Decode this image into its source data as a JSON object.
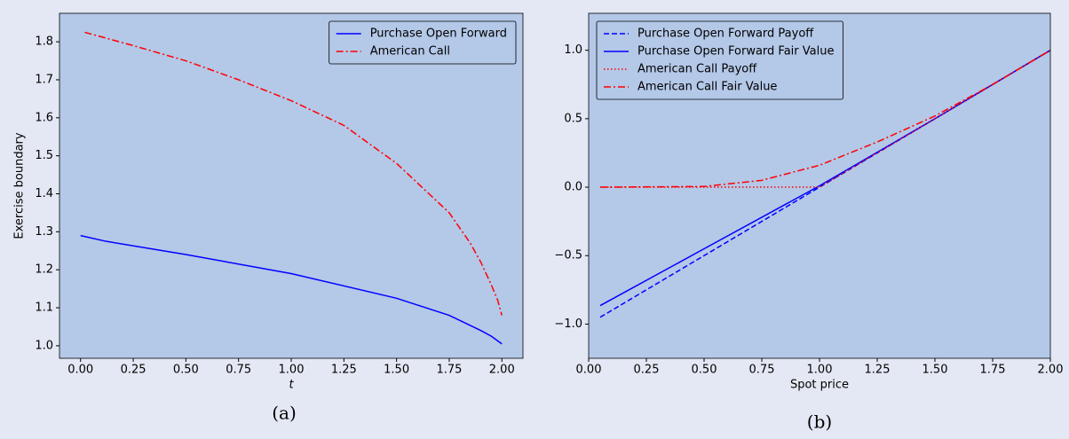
{
  "chart_data": [
    {
      "type": "line",
      "xlabel": "t",
      "ylabel": "Exercise boundary",
      "caption": "(a)",
      "legend": "upper right",
      "xlim": [
        -0.1,
        2.1
      ],
      "ylim": [
        0.967,
        1.875
      ],
      "xticks": [
        {
          "value": 0,
          "label": "0.00"
        },
        {
          "value": 0.25,
          "label": "0.25"
        },
        {
          "value": 0.5,
          "label": "0.50"
        },
        {
          "value": 0.75,
          "label": "0.75"
        },
        {
          "value": 1,
          "label": "1.00"
        },
        {
          "value": 1.25,
          "label": "1.25"
        },
        {
          "value": 1.5,
          "label": "1.50"
        },
        {
          "value": 1.75,
          "label": "1.75"
        },
        {
          "value": 2,
          "label": "2.00"
        }
      ],
      "yticks": [
        {
          "value": 1,
          "label": "1.0"
        },
        1.1,
        1.2,
        1.3,
        1.4,
        1.5,
        1.6,
        1.7,
        1.8
      ],
      "series": [
        {
          "name": "Purchase Open Forward",
          "color": "#0000ff",
          "linestyle": "solid",
          "x": [
            0,
            0.12,
            0.5,
            1.0,
            1.5,
            1.75,
            1.9,
            1.95,
            2.0
          ],
          "values": [
            1.29,
            1.275,
            1.24,
            1.19,
            1.125,
            1.08,
            1.04,
            1.025,
            1.005
          ]
        },
        {
          "name": "American Call",
          "color": "#ff0000",
          "linestyle": "dashdot",
          "x": [
            0.02,
            0.25,
            0.5,
            0.75,
            1.0,
            1.25,
            1.5,
            1.75,
            1.85,
            1.9,
            1.95,
            1.98,
            2.0
          ],
          "values": [
            1.825,
            1.79,
            1.75,
            1.7,
            1.645,
            1.58,
            1.48,
            1.35,
            1.27,
            1.22,
            1.16,
            1.12,
            1.08
          ]
        }
      ]
    },
    {
      "type": "line",
      "xlabel": "Spot price",
      "caption": "(b)",
      "legend": "upper left",
      "xlim": [
        0,
        2
      ],
      "ylim": [
        -1.25,
        1.27
      ],
      "xticks": [
        {
          "value": 0,
          "label": "0.00"
        },
        {
          "value": 0.25,
          "label": "0.25"
        },
        {
          "value": 0.5,
          "label": "0.50"
        },
        {
          "value": 0.75,
          "label": "0.75"
        },
        {
          "value": 1,
          "label": "1.00"
        },
        {
          "value": 1.25,
          "label": "1.25"
        },
        {
          "value": 1.5,
          "label": "1.50"
        },
        {
          "value": 1.75,
          "label": "1.75"
        },
        {
          "value": 2,
          "label": "2.00"
        }
      ],
      "yticks": [
        {
          "value": -1,
          "label": "−1.0"
        },
        {
          "value": -0.5,
          "label": "−0.5"
        },
        {
          "value": 0,
          "label": "0.0"
        },
        0.5,
        {
          "value": 1,
          "label": "1.0"
        }
      ],
      "series": [
        {
          "name": "Purchase Open Forward Payoff",
          "color": "#0000ff",
          "linestyle": "dashed",
          "x": [
            0.05,
            2.0
          ],
          "values": [
            -0.95,
            1.0
          ]
        },
        {
          "name": "Purchase Open Forward Fair Value",
          "color": "#0000ff",
          "linestyle": "solid",
          "x": [
            0.05,
            0.5,
            1.0,
            1.5,
            2.0
          ],
          "values": [
            -0.865,
            -0.45,
            0.01,
            0.5,
            1.0
          ]
        },
        {
          "name": "American Call Payoff",
          "color": "#ff0000",
          "linestyle": "dotted",
          "x": [
            0.05,
            1.0,
            2.0
          ],
          "values": [
            0,
            0,
            1.0
          ]
        },
        {
          "name": "American Call Fair Value",
          "color": "#ff0000",
          "linestyle": "dashdot",
          "x": [
            0.05,
            0.5,
            0.75,
            1.0,
            1.25,
            1.5,
            1.75,
            2.0
          ],
          "values": [
            0,
            0.005,
            0.05,
            0.16,
            0.33,
            0.52,
            0.75,
            1.0
          ]
        }
      ]
    }
  ]
}
